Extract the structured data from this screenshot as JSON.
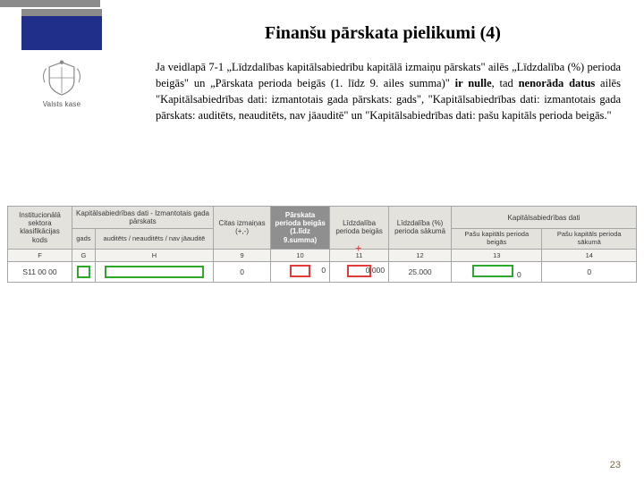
{
  "brand_label": "Valsts kase",
  "title": "Finanšu pārskata pielikumi (4)",
  "paragraph_html": "Ja veidlapā 7-1 „Līdzdalības kapitālsabiedrību kapitālā izmaiņu pārskats\" ailēs „Līdzdalība (%) perioda beigās\" un „Pārskata perioda beigās (1. līdz 9. ailes summa)\" <b>ir nulle</b>, tad <b>nenorāda datus</b> ailēs \"Kapitālsabiedrības dati: izmantotais gada pārskats: gads\", \"Kapitālsabiedrības dati: izmantotais gada pārskats: auditēts, neauditēts, nav jāauditē\" un \"Kapitālsabiedrības dati: pašu kapitāls perioda beigās.\"",
  "table": {
    "group_headers": [
      "Institucionālā sektora klasifikācijas kods",
      "Kapitālsabiedrības dati - Izmantotais gada pārskats",
      "Citas izmaiņas (+,-)",
      "Pārskata perioda beigās (1.līdz 9.summa)",
      "Līdzdalība perioda beigās",
      "Līdzdalība (%) perioda sākumā",
      "Kapitālsabiedrības dati"
    ],
    "sub_headers": {
      "g2a": "gads",
      "g2b": "auditēts / neauditēts / nav jāauditē",
      "g7a": "Pašu kapitāls perioda beigās",
      "g7b": "Pašu kapitāls perioda sākumā"
    },
    "col_nums": [
      "F",
      "G",
      "H",
      "9",
      "10",
      "11",
      "12",
      "13",
      "14"
    ],
    "row": {
      "code": "S11 00 00",
      "c9": "0",
      "c10": "0",
      "c11": "0.000",
      "c12": "25.000",
      "c13": "0",
      "c14": "0"
    }
  },
  "plus": "+",
  "page_number": "23",
  "colors": {
    "flag": "#20308a",
    "header_bg": "#e4e2dd",
    "dark_header": "#8f8f8f",
    "green": "#2da82d",
    "red": "#e23b3b"
  }
}
